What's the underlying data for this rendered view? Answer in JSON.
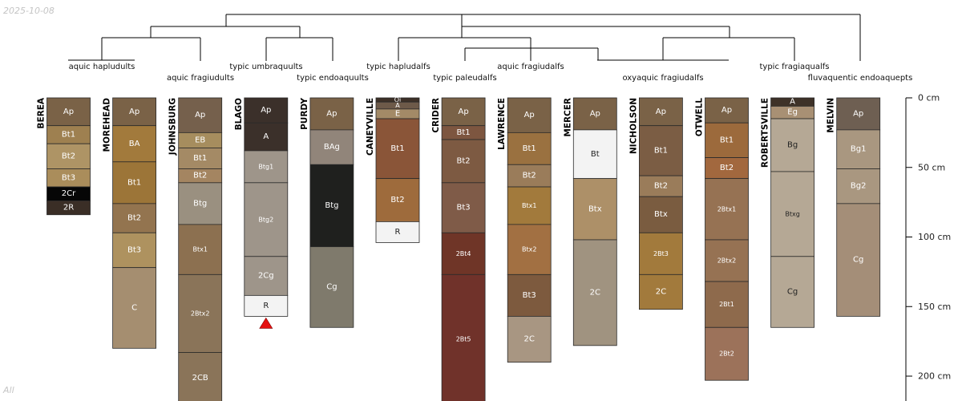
{
  "date": "2025-10-08",
  "corner_label": "All",
  "depth_axis": {
    "unit": "cm",
    "max": 220,
    "ticks": [
      {
        "depth": 0,
        "label": "0 cm"
      },
      {
        "depth": 50,
        "label": "50 cm"
      },
      {
        "depth": 100,
        "label": "100 cm"
      },
      {
        "depth": 150,
        "label": "150 cm"
      },
      {
        "depth": 200,
        "label": "200 cm"
      }
    ]
  },
  "taxa": [
    {
      "label": "aquic hapludults",
      "profiles": [
        "BEREA",
        "MOREHEAD"
      ]
    },
    {
      "label": "aquic fragiudults",
      "profiles": [
        "JOHNSBURG"
      ]
    },
    {
      "label": "typic umbraquults",
      "profiles": [
        "BLAGO"
      ]
    },
    {
      "label": "typic endoaquults",
      "profiles": [
        "PURDY"
      ]
    },
    {
      "label": "typic hapludalfs",
      "profiles": [
        "CANEYVILLE"
      ]
    },
    {
      "label": "typic paleudalfs",
      "profiles": [
        "CRIDER"
      ]
    },
    {
      "label": "aquic fragiudalfs",
      "profiles": [
        "LAWRENCE"
      ]
    },
    {
      "label": "oxyaquic fragiudalfs",
      "profiles": [
        "MERCER",
        "NICHOLSON",
        "OTWELL"
      ]
    },
    {
      "label": "typic fragiaqualfs",
      "profiles": [
        "ROBERTSVILLE"
      ]
    },
    {
      "label": "fluvaquentic endoaquepts",
      "profiles": [
        "MELVIN"
      ]
    }
  ],
  "profiles": [
    {
      "name": "BEREA",
      "horizons": [
        {
          "name": "Ap",
          "top": 0,
          "bottom": 20,
          "color": "#7a6247"
        },
        {
          "name": "Bt1",
          "top": 20,
          "bottom": 33,
          "color": "#9e8050"
        },
        {
          "name": "Bt2",
          "top": 33,
          "bottom": 51,
          "color": "#ae9465"
        },
        {
          "name": "Bt3",
          "top": 51,
          "bottom": 64,
          "color": "#aa8d5b"
        },
        {
          "name": "2Cr",
          "top": 64,
          "bottom": 74,
          "color": "#060606"
        },
        {
          "name": "2R",
          "top": 74,
          "bottom": 84,
          "color": "#3a2e26"
        }
      ]
    },
    {
      "name": "MOREHEAD",
      "horizons": [
        {
          "name": "Ap",
          "top": 0,
          "bottom": 20,
          "color": "#7a6247"
        },
        {
          "name": "BA",
          "top": 20,
          "bottom": 46,
          "color": "#a27a3c"
        },
        {
          "name": "Bt1",
          "top": 46,
          "bottom": 76,
          "color": "#9c7538"
        },
        {
          "name": "Bt2",
          "top": 76,
          "bottom": 97,
          "color": "#93744f"
        },
        {
          "name": "Bt3",
          "top": 97,
          "bottom": 122,
          "color": "#ae925f"
        },
        {
          "name": "C",
          "top": 122,
          "bottom": 180,
          "color": "#a58e70"
        }
      ]
    },
    {
      "name": "JOHNSBURG",
      "horizons": [
        {
          "name": "Ap",
          "top": 0,
          "bottom": 25,
          "color": "#75604c"
        },
        {
          "name": "EB",
          "top": 25,
          "bottom": 36,
          "color": "#a68d5e"
        },
        {
          "name": "Bt1",
          "top": 36,
          "bottom": 51,
          "color": "#a48a65"
        },
        {
          "name": "Bt2",
          "top": 51,
          "bottom": 61,
          "color": "#a48561"
        },
        {
          "name": "Btg",
          "top": 61,
          "bottom": 91,
          "color": "#9a9080"
        },
        {
          "name": "Btx1",
          "top": 91,
          "bottom": 127,
          "color": "#8c7050"
        },
        {
          "name": "2Btx2",
          "top": 127,
          "bottom": 183,
          "color": "#8a7459"
        },
        {
          "name": "2CB",
          "top": 183,
          "bottom": 220,
          "color": "#8a7459"
        }
      ]
    },
    {
      "name": "BLAGO",
      "horizons": [
        {
          "name": "Ap",
          "top": 0,
          "bottom": 18,
          "color": "#3b302a"
        },
        {
          "name": "A",
          "top": 18,
          "bottom": 38,
          "color": "#3b302a"
        },
        {
          "name": "Btg1",
          "top": 38,
          "bottom": 61,
          "color": "#9e958a"
        },
        {
          "name": "Btg2",
          "top": 61,
          "bottom": 114,
          "color": "#9e958a"
        },
        {
          "name": "2Cg",
          "top": 114,
          "bottom": 142,
          "color": "#9e958a"
        },
        {
          "name": "R",
          "top": 142,
          "bottom": 157,
          "color": "#f3f3f3"
        }
      ],
      "marker": {
        "type": "triangle",
        "color": "#e51010"
      }
    },
    {
      "name": "PURDY",
      "horizons": [
        {
          "name": "Ap",
          "top": 0,
          "bottom": 23,
          "color": "#7a6247"
        },
        {
          "name": "BAg",
          "top": 23,
          "bottom": 48,
          "color": "#91857a"
        },
        {
          "name": "Btg",
          "top": 48,
          "bottom": 107,
          "color": "#1f201e"
        },
        {
          "name": "Cg",
          "top": 107,
          "bottom": 165,
          "color": "#7f7a6c"
        }
      ]
    },
    {
      "name": "CANEYVILLE",
      "horizons": [
        {
          "name": "Oi",
          "top": 0,
          "bottom": 3,
          "color": "#3d3027"
        },
        {
          "name": "A",
          "top": 3,
          "bottom": 8,
          "color": "#6d5a49"
        },
        {
          "name": "E",
          "top": 8,
          "bottom": 15,
          "color": "#a38a67"
        },
        {
          "name": "Bt1",
          "top": 15,
          "bottom": 58,
          "color": "#8a5538"
        },
        {
          "name": "Bt2",
          "top": 58,
          "bottom": 89,
          "color": "#9e6b3c"
        },
        {
          "name": "R",
          "top": 89,
          "bottom": 104,
          "color": "#f3f3f3"
        }
      ]
    },
    {
      "name": "CRIDER",
      "horizons": [
        {
          "name": "Ap",
          "top": 0,
          "bottom": 20,
          "color": "#7a6247"
        },
        {
          "name": "Bt1",
          "top": 20,
          "bottom": 30,
          "color": "#7d5640"
        },
        {
          "name": "Bt2",
          "top": 30,
          "bottom": 61,
          "color": "#7d5a42"
        },
        {
          "name": "Bt3",
          "top": 61,
          "bottom": 97,
          "color": "#7f5b48"
        },
        {
          "name": "2Bt4",
          "top": 97,
          "bottom": 127,
          "color": "#6f3527"
        },
        {
          "name": "2Bt5",
          "top": 127,
          "bottom": 220,
          "color": "#70322a"
        }
      ]
    },
    {
      "name": "LAWRENCE",
      "horizons": [
        {
          "name": "Ap",
          "top": 0,
          "bottom": 25,
          "color": "#7a6247"
        },
        {
          "name": "Bt1",
          "top": 25,
          "bottom": 48,
          "color": "#9a7140"
        },
        {
          "name": "Bt2",
          "top": 48,
          "bottom": 64,
          "color": "#9a7c5a"
        },
        {
          "name": "Btx1",
          "top": 64,
          "bottom": 91,
          "color": "#a27a3c"
        },
        {
          "name": "Btx2",
          "top": 91,
          "bottom": 127,
          "color": "#a27042"
        },
        {
          "name": "Bt3",
          "top": 127,
          "bottom": 157,
          "color": "#7d5a3e"
        },
        {
          "name": "2C",
          "top": 157,
          "bottom": 190,
          "color": "#a89682"
        }
      ]
    },
    {
      "name": "MERCER",
      "horizons": [
        {
          "name": "Ap",
          "top": 0,
          "bottom": 23,
          "color": "#7a6247"
        },
        {
          "name": "Bt",
          "top": 23,
          "bottom": 58,
          "color": "#f3f3f3"
        },
        {
          "name": "Btx",
          "top": 58,
          "bottom": 102,
          "color": "#ad9068"
        },
        {
          "name": "2C",
          "top": 102,
          "bottom": 178,
          "color": "#a09380"
        }
      ]
    },
    {
      "name": "NICHOLSON",
      "horizons": [
        {
          "name": "Ap",
          "top": 0,
          "bottom": 20,
          "color": "#7a6247"
        },
        {
          "name": "Bt1",
          "top": 20,
          "bottom": 56,
          "color": "#7b5d44"
        },
        {
          "name": "Bt2",
          "top": 56,
          "bottom": 71,
          "color": "#9a7c5a"
        },
        {
          "name": "Btx",
          "top": 71,
          "bottom": 97,
          "color": "#7a5c40"
        },
        {
          "name": "2Bt3",
          "top": 97,
          "bottom": 127,
          "color": "#a27a3c"
        },
        {
          "name": "2C",
          "top": 127,
          "bottom": 152,
          "color": "#a27a3c"
        }
      ]
    },
    {
      "name": "OTWELL",
      "horizons": [
        {
          "name": "Ap",
          "top": 0,
          "bottom": 18,
          "color": "#7a6247"
        },
        {
          "name": "Bt1",
          "top": 18,
          "bottom": 43,
          "color": "#9c6a3c"
        },
        {
          "name": "Bt2",
          "top": 43,
          "bottom": 58,
          "color": "#a2683e"
        },
        {
          "name": "2Btx1",
          "top": 58,
          "bottom": 102,
          "color": "#967253"
        },
        {
          "name": "2Btx2",
          "top": 102,
          "bottom": 132,
          "color": "#967253"
        },
        {
          "name": "2Bt1",
          "top": 132,
          "bottom": 165,
          "color": "#8e6a4c"
        },
        {
          "name": "2Bt2",
          "top": 165,
          "bottom": 203,
          "color": "#9c725a"
        }
      ]
    },
    {
      "name": "ROBERTSVILLE",
      "horizons": [
        {
          "name": "A",
          "top": 0,
          "bottom": 6,
          "color": "#3e3228"
        },
        {
          "name": "Eg",
          "top": 6,
          "bottom": 15,
          "color": "#a89074"
        },
        {
          "name": "Bg",
          "top": 15,
          "bottom": 53,
          "color": "#b5a895"
        },
        {
          "name": "Btxg",
          "top": 53,
          "bottom": 114,
          "color": "#b5a895"
        },
        {
          "name": "Cg",
          "top": 114,
          "bottom": 165,
          "color": "#b5a895"
        }
      ]
    },
    {
      "name": "MELVIN",
      "horizons": [
        {
          "name": "Ap",
          "top": 0,
          "bottom": 23,
          "color": "#6e5f52"
        },
        {
          "name": "Bg1",
          "top": 23,
          "bottom": 51,
          "color": "#a99780"
        },
        {
          "name": "Bg2",
          "top": 51,
          "bottom": 76,
          "color": "#a99780"
        },
        {
          "name": "Cg",
          "top": 76,
          "bottom": 157,
          "color": "#a48e78"
        }
      ]
    }
  ]
}
